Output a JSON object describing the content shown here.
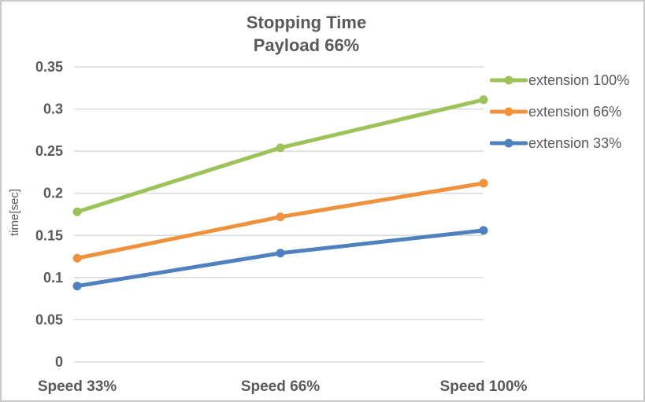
{
  "title": {
    "line1": "Stopping Time",
    "line2": "Payload 66%"
  },
  "colors": {
    "text": "#595959",
    "gridline": "#d9d9d9",
    "axis_line": "#d9d9d9",
    "border": "#c9c9c9",
    "background": "#ffffff"
  },
  "chart_data": {
    "type": "line",
    "title": "Stopping Time Payload 66%",
    "categories": [
      "Speed 33%",
      "Speed 66%",
      "Speed 100%"
    ],
    "series": [
      {
        "name": "extension 100%",
        "color": "#9ec25a",
        "values": [
          0.178,
          0.254,
          0.311
        ]
      },
      {
        "name": "extension 66%",
        "color": "#f0913d",
        "values": [
          0.123,
          0.172,
          0.212
        ]
      },
      {
        "name": "extension 33%",
        "color": "#4e81bd",
        "values": [
          0.09,
          0.129,
          0.156
        ]
      }
    ],
    "xlabel": "",
    "ylabel": "time[sec]",
    "ylim": [
      0,
      0.35
    ],
    "yticks": [
      0,
      0.05,
      0.1,
      0.15,
      0.2,
      0.25,
      0.3,
      0.35
    ],
    "ytick_labels": [
      "0",
      "0.05",
      "0.1",
      "0.15",
      "0.2",
      "0.25",
      "0.3",
      "0.35"
    ],
    "grid": true,
    "legend_position": "right",
    "marker": "circle"
  }
}
